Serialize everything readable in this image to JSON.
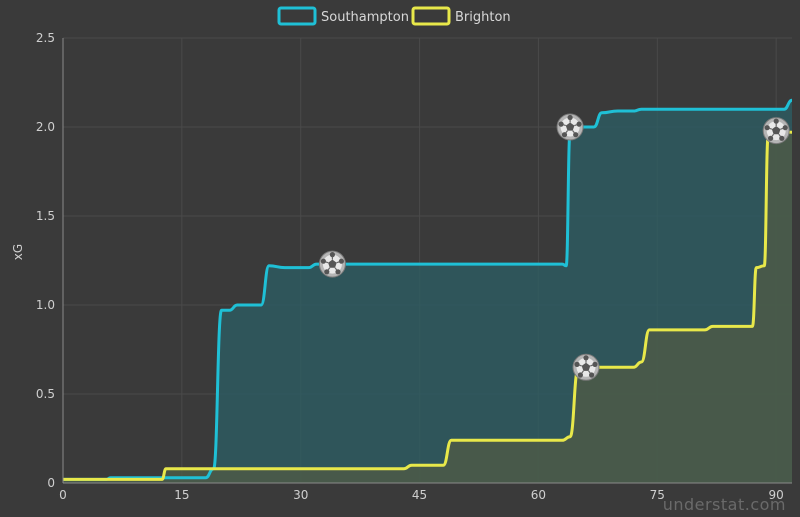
{
  "colors": {
    "background": "#3a3a3a",
    "grid": "#4a4a4a",
    "southampton": "#1fc0d6",
    "brighton": "#e8e84a",
    "southampton_fill": "#2e5a60",
    "brighton_fill": "#4c5a48"
  },
  "watermark": "understat.com",
  "chart_data": {
    "type": "line",
    "xlabel": "",
    "ylabel": "xG",
    "xlim": [
      0,
      92
    ],
    "ylim": [
      0,
      2.5
    ],
    "xticks": [
      "0",
      "15",
      "30",
      "45",
      "60",
      "75",
      "90"
    ],
    "yticks": [
      "0",
      "0.5",
      "1.0",
      "1.5",
      "2.0",
      "2.5"
    ],
    "legend_position": "top-center",
    "series": [
      {
        "name": "Southampton",
        "points": [
          [
            0,
            0.02
          ],
          [
            5.5,
            0.02
          ],
          [
            6,
            0.03
          ],
          [
            18,
            0.03
          ],
          [
            19,
            0.08
          ],
          [
            20,
            0.97
          ],
          [
            21,
            0.97
          ],
          [
            22,
            1.0
          ],
          [
            25,
            1.0
          ],
          [
            26,
            1.22
          ],
          [
            28,
            1.21
          ],
          [
            31,
            1.21
          ],
          [
            32,
            1.23
          ],
          [
            63,
            1.23
          ],
          [
            63.5,
            1.22
          ],
          [
            64,
            1.97
          ],
          [
            65,
            2.0
          ],
          [
            67,
            2.0
          ],
          [
            68,
            2.08
          ],
          [
            70,
            2.09
          ],
          [
            72,
            2.09
          ],
          [
            73,
            2.1
          ],
          [
            91,
            2.1
          ],
          [
            92,
            2.15
          ]
        ],
        "goals": [
          [
            34,
            1.23
          ],
          [
            64,
            2.0
          ]
        ]
      },
      {
        "name": "Brighton",
        "points": [
          [
            0,
            0.02
          ],
          [
            12.5,
            0.02
          ],
          [
            13,
            0.08
          ],
          [
            14,
            0.08
          ],
          [
            15,
            0.08
          ],
          [
            16,
            0.08
          ],
          [
            43,
            0.08
          ],
          [
            44,
            0.1
          ],
          [
            48,
            0.1
          ],
          [
            49,
            0.24
          ],
          [
            63,
            0.24
          ],
          [
            64,
            0.26
          ],
          [
            65,
            0.64
          ],
          [
            66,
            0.65
          ],
          [
            72,
            0.65
          ],
          [
            73,
            0.68
          ],
          [
            74,
            0.86
          ],
          [
            75,
            0.86
          ],
          [
            81,
            0.86
          ],
          [
            82,
            0.88
          ],
          [
            87,
            0.88
          ],
          [
            87.5,
            1.21
          ],
          [
            88.5,
            1.22
          ],
          [
            89,
            1.95
          ],
          [
            90,
            1.98
          ],
          [
            92,
            1.97
          ]
        ],
        "goals": [
          [
            66,
            0.65
          ],
          [
            90,
            1.98
          ]
        ]
      }
    ]
  }
}
